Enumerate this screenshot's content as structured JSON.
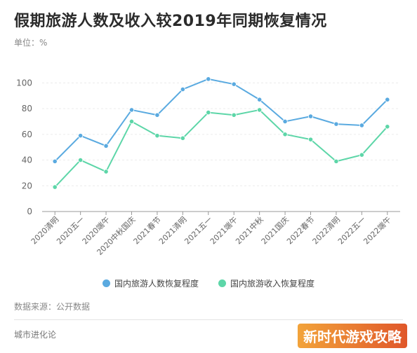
{
  "header": {
    "title": "假期旅游人数及收入较2019年同期恢复情况",
    "unit": "单位：%"
  },
  "legend": {
    "series_a": "国内旅游人数恢复程度",
    "series_b": "国内旅游收入恢复程度"
  },
  "footer": {
    "source": "数据来源：公开数据",
    "brand": "城市进化论",
    "watermark": "新时代游戏攻略"
  },
  "colors": {
    "series_a": "#5aaae0",
    "series_b": "#5dd6a8",
    "grid": "#ececec",
    "axis": "#999999",
    "tick_text": "#666666"
  },
  "chart_data": {
    "type": "line",
    "categories": [
      "2020清明",
      "2020五一",
      "2020端午",
      "2020中秋国庆",
      "2021春节",
      "2021清明",
      "2021五一",
      "2021端午",
      "2021中秋",
      "2021国庆",
      "2022春节",
      "2022清明",
      "2022五一",
      "2022端午"
    ],
    "series": [
      {
        "name": "国内旅游人数恢复程度",
        "values": [
          39,
          59,
          51,
          79,
          75,
          95,
          103,
          99,
          87,
          70,
          74,
          68,
          67,
          87
        ]
      },
      {
        "name": "国内旅游收入恢复程度",
        "values": [
          19,
          40,
          31,
          70,
          59,
          57,
          77,
          75,
          79,
          60,
          56,
          39,
          44,
          66
        ]
      }
    ],
    "yticks": [
      0,
      20,
      40,
      60,
      80,
      100
    ],
    "ylim": [
      0,
      110
    ],
    "grid": true,
    "legend_position": "bottom"
  }
}
